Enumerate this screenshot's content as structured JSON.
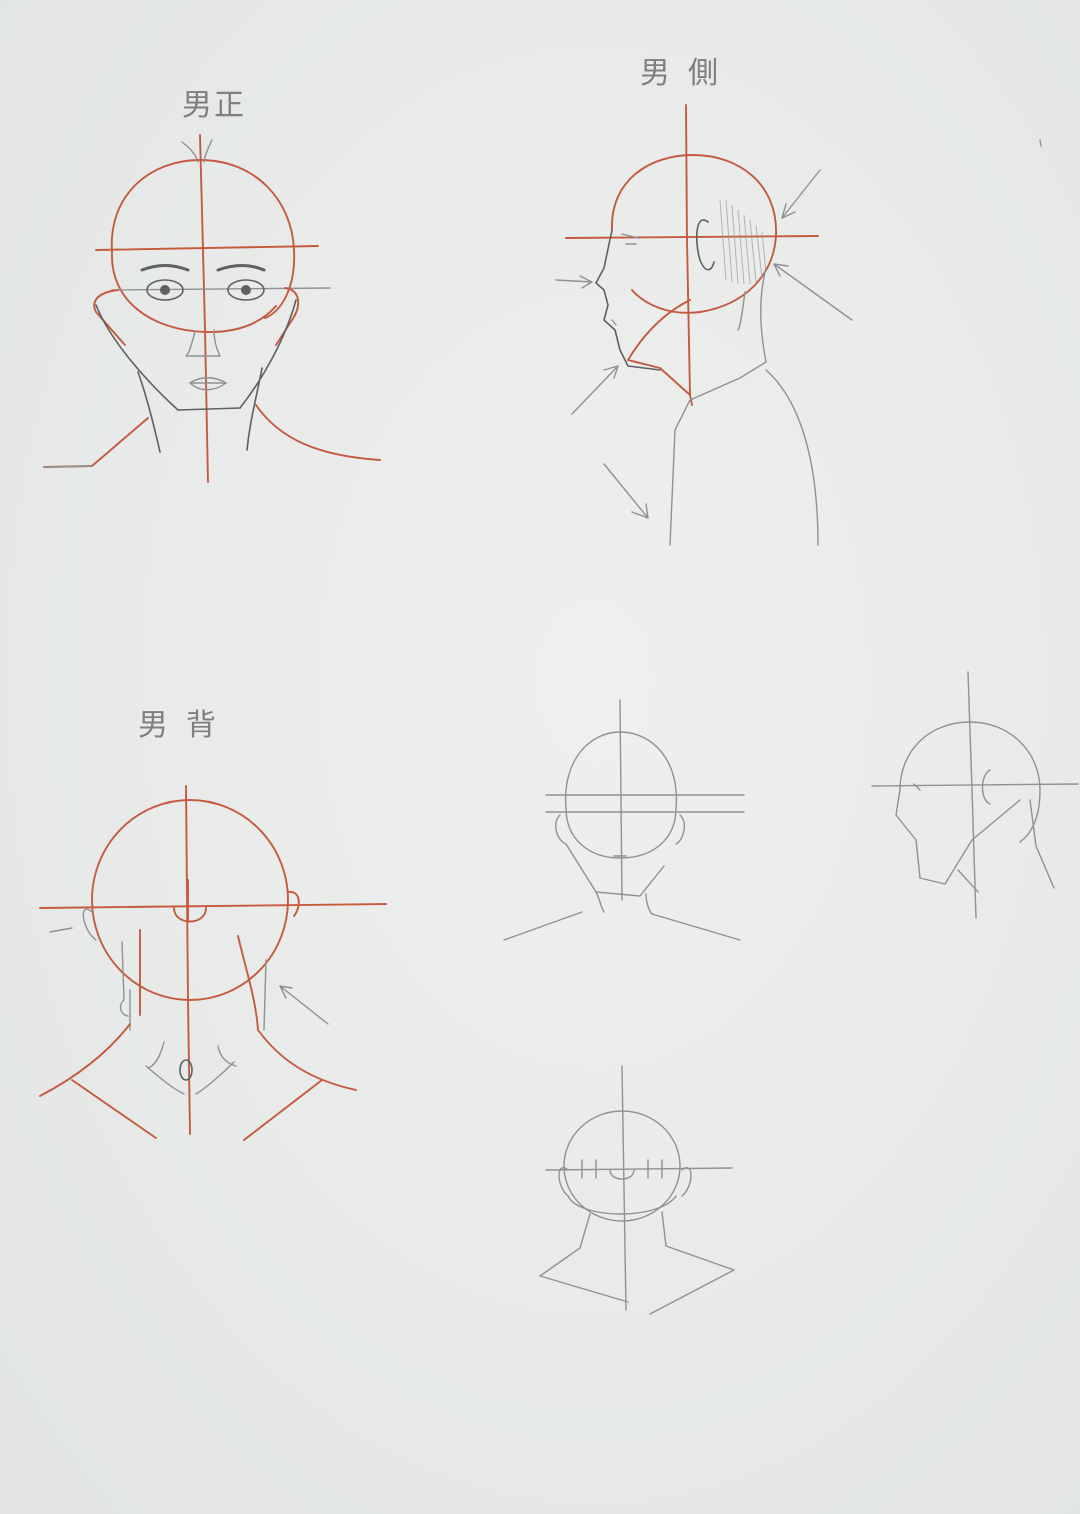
{
  "labels": {
    "front": "男正",
    "side": "男側",
    "back": "男背"
  },
  "colors": {
    "paper": "#e9ecea",
    "red_pencil": "#c65a3e",
    "graphite": "#8f9193"
  }
}
